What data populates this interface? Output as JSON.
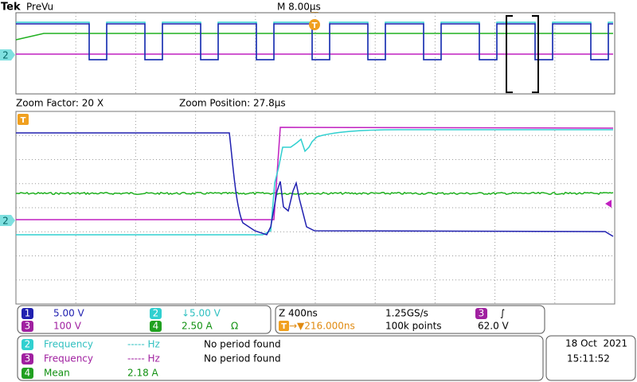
{
  "header": {
    "brand": "Tek",
    "mode": "PreVu",
    "timebase": "M 8.00µs",
    "trigger_marker": "T",
    "channel_marker": "2"
  },
  "zoom": {
    "factor": "Zoom Factor: 20 X",
    "position": "Zoom Position: 27.8µs",
    "trigger_marker": "T",
    "channel_marker": "2"
  },
  "channels": [
    {
      "number": "1",
      "scale": "5.00 V"
    },
    {
      "number": "2",
      "scale": "↓5.00 V"
    },
    {
      "number": "3",
      "scale": "100 V"
    },
    {
      "number": "4",
      "scale": "2.50 A",
      "unit_icon": "Ω"
    }
  ],
  "acquisition": {
    "zoom_scale": "Z 400ns",
    "sample_rate": "1.25GS/s",
    "trigger_channel": "3",
    "trigger_slope": "∫",
    "trigger_icon": "T",
    "trigger_position": "→▼216.000ns",
    "record_length": "100k points",
    "trigger_level": "62.0 V"
  },
  "measurements": [
    {
      "channel": "2",
      "name": "Frequency",
      "value": "----- Hz",
      "status": "No period found"
    },
    {
      "channel": "3",
      "name": "Frequency",
      "value": "----- Hz",
      "status": "No period found"
    },
    {
      "channel": "4",
      "name": "Mean",
      "value": "2.18 A"
    }
  ],
  "datetime": {
    "date": "18 Oct  2021",
    "time": "15:11:52"
  }
}
